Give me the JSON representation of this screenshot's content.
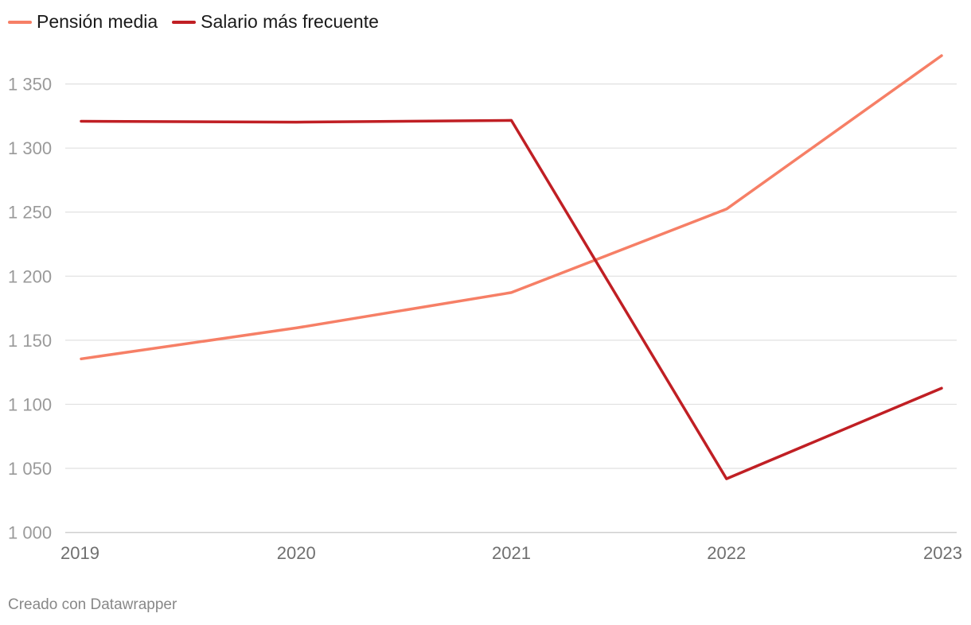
{
  "chart_data": {
    "type": "line",
    "title": "",
    "xlabel": "",
    "ylabel": "",
    "categories": [
      "2019",
      "2020",
      "2021",
      "2022",
      "2023"
    ],
    "series": [
      {
        "name": "Pensión media",
        "color": "#f67f66",
        "values": [
          1135.5,
          1159.6,
          1187.2,
          1252.4,
          1372.1
        ]
      },
      {
        "name": "Salario más frecuente",
        "color": "#c01f24",
        "values": [
          1320.9,
          1320.2,
          1321.6,
          1041.9,
          1112.6
        ]
      }
    ],
    "ylim": [
      1000,
      1380
    ],
    "yticks": [
      1000,
      1050,
      1100,
      1150,
      1200,
      1250,
      1300,
      1350
    ],
    "ytick_labels": [
      "1 000",
      "1 050",
      "1 100",
      "1 150",
      "1 200",
      "1 250",
      "1 300",
      "1 350"
    ],
    "grid": true,
    "legend_position": "top-left"
  },
  "footer": {
    "credit": "Creado con Datawrapper"
  },
  "colors": {
    "grid": "#e0e0e0",
    "baseline": "#cfcfcf"
  }
}
